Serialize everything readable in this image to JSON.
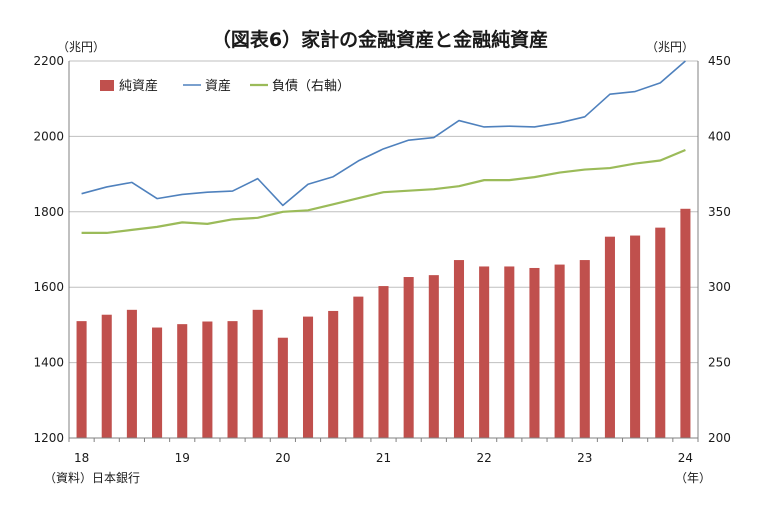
{
  "chart_data": {
    "type": "bar",
    "title": "（図表6）家計の金融資産と金融純資産",
    "left_unit": "（兆円）",
    "right_unit": "（兆円）",
    "x_unit": "（年）",
    "source": "（資料）日本銀行",
    "left_axis": {
      "min": 1200,
      "max": 2200,
      "ticks": [
        1200,
        1400,
        1600,
        1800,
        2000,
        2200
      ]
    },
    "right_axis": {
      "min": 200,
      "max": 450,
      "ticks": [
        200,
        250,
        300,
        350,
        400,
        450
      ]
    },
    "x_tick_labels": [
      {
        "label": "18",
        "index": 0
      },
      {
        "label": "19",
        "index": 4
      },
      {
        "label": "20",
        "index": 8
      },
      {
        "label": "21",
        "index": 12
      },
      {
        "label": "22",
        "index": 16
      },
      {
        "label": "23",
        "index": 20
      },
      {
        "label": "24",
        "index": 24
      }
    ],
    "periods": [
      "18Q1",
      "18Q2",
      "18Q3",
      "18Q4",
      "19Q1",
      "19Q2",
      "19Q3",
      "19Q4",
      "20Q1",
      "20Q2",
      "20Q3",
      "20Q4",
      "21Q1",
      "21Q2",
      "21Q3",
      "21Q4",
      "22Q1",
      "22Q2",
      "22Q3",
      "22Q4",
      "23Q1",
      "23Q2",
      "23Q3",
      "23Q4",
      "24Q1"
    ],
    "legend_position": "top-left",
    "grid": "horizontal",
    "series": [
      {
        "name": "純資産",
        "type": "bar",
        "axis": "left",
        "color": "#c0504d",
        "values": [
          1510,
          1527,
          1540,
          1493,
          1502,
          1509,
          1510,
          1540,
          1466,
          1522,
          1537,
          1575,
          1603,
          1627,
          1632,
          1672,
          1655,
          1655,
          1651,
          1660,
          1672,
          1734,
          1737,
          1758,
          1808
        ]
      },
      {
        "name": "資産",
        "type": "line",
        "axis": "left",
        "color": "#4f81bd",
        "values": [
          1848,
          1866,
          1878,
          1835,
          1846,
          1852,
          1855,
          1888,
          1817,
          1873,
          1893,
          1935,
          1967,
          1990,
          1997,
          2042,
          2025,
          2027,
          2025,
          2036,
          2052,
          2112,
          2119,
          2142,
          2200
        ]
      },
      {
        "name": "負債（右軸）",
        "type": "line",
        "axis": "right",
        "color": "#9bbb59",
        "values": [
          336,
          336,
          338,
          340,
          343,
          342,
          345,
          346,
          350,
          351,
          355,
          359,
          363,
          364,
          365,
          367,
          371,
          371,
          373,
          376,
          378,
          379,
          382,
          384,
          391
        ]
      }
    ]
  }
}
